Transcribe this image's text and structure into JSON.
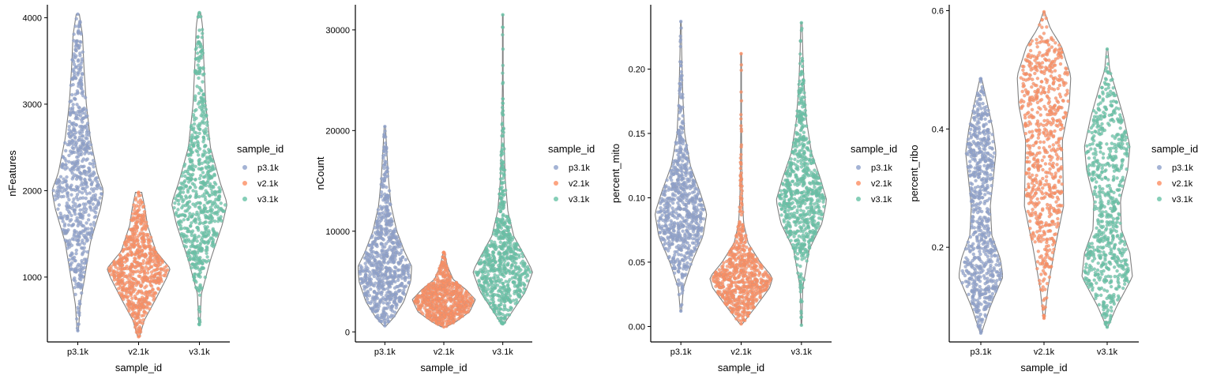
{
  "chart_data": [
    {
      "type": "violin",
      "xlabel": "sample_id",
      "ylabel": "nFeatures",
      "categories": [
        "p3.1k",
        "v2.1k",
        "v3.1k"
      ],
      "ylim": [
        250,
        4150
      ],
      "yticks": [
        1000,
        2000,
        3000,
        4000
      ],
      "yticklabels": [
        "1000",
        "2000",
        "3000",
        "4000"
      ],
      "legend": {
        "title": "sample_id",
        "placement": "right",
        "entries": [
          "p3.1k",
          "v2.1k",
          "v3.1k"
        ]
      },
      "series": [
        {
          "name": "p3.1k",
          "color": "#8da0cb",
          "min": 380,
          "max": 4040,
          "median": 2050,
          "profile": [
            [
              380,
              0.02
            ],
            [
              700,
              0.08
            ],
            [
              1000,
              0.22
            ],
            [
              1400,
              0.4
            ],
            [
              1800,
              0.72
            ],
            [
              2000,
              0.82
            ],
            [
              2200,
              0.62
            ],
            [
              2600,
              0.4
            ],
            [
              3000,
              0.27
            ],
            [
              3400,
              0.2
            ],
            [
              3800,
              0.15
            ],
            [
              4040,
              0.05
            ]
          ]
        },
        {
          "name": "v2.1k",
          "color": "#fc8d62",
          "min": 310,
          "max": 1980,
          "median": 1050,
          "profile": [
            [
              310,
              0.03
            ],
            [
              500,
              0.18
            ],
            [
              750,
              0.55
            ],
            [
              1000,
              0.9
            ],
            [
              1100,
              1.0
            ],
            [
              1300,
              0.55
            ],
            [
              1600,
              0.28
            ],
            [
              1800,
              0.2
            ],
            [
              1980,
              0.1
            ]
          ]
        },
        {
          "name": "v3.1k",
          "color": "#66c2a5",
          "min": 450,
          "max": 4060,
          "median": 1850,
          "profile": [
            [
              450,
              0.02
            ],
            [
              800,
              0.06
            ],
            [
              1200,
              0.35
            ],
            [
              1600,
              0.72
            ],
            [
              1850,
              0.88
            ],
            [
              2100,
              0.65
            ],
            [
              2500,
              0.35
            ],
            [
              3000,
              0.2
            ],
            [
              3500,
              0.14
            ],
            [
              3900,
              0.1
            ],
            [
              4060,
              0.04
            ]
          ]
        }
      ]
    },
    {
      "type": "violin",
      "xlabel": "sample_id",
      "ylabel": "nCount",
      "categories": [
        "p3.1k",
        "v2.1k",
        "v3.1k"
      ],
      "ylim": [
        -1000,
        32500
      ],
      "yticks": [
        0,
        10000,
        20000,
        30000
      ],
      "yticklabels": [
        "0",
        "10000",
        "20000",
        "30000"
      ],
      "legend": {
        "title": "sample_id",
        "placement": "right",
        "entries": [
          "p3.1k",
          "v2.1k",
          "v3.1k"
        ]
      },
      "series": [
        {
          "name": "p3.1k",
          "color": "#8da0cb",
          "min": 600,
          "max": 20400,
          "median": 6500,
          "profile": [
            [
              600,
              0.04
            ],
            [
              1500,
              0.3
            ],
            [
              3000,
              0.6
            ],
            [
              5000,
              0.82
            ],
            [
              6500,
              0.85
            ],
            [
              8000,
              0.62
            ],
            [
              10000,
              0.38
            ],
            [
              12500,
              0.2
            ],
            [
              15000,
              0.12
            ],
            [
              17500,
              0.07
            ],
            [
              20400,
              0.02
            ]
          ]
        },
        {
          "name": "v2.1k",
          "color": "#fc8d62",
          "min": 500,
          "max": 7900,
          "median": 3300,
          "profile": [
            [
              500,
              0.08
            ],
            [
              1000,
              0.38
            ],
            [
              2000,
              0.82
            ],
            [
              3200,
              1.0
            ],
            [
              4200,
              0.7
            ],
            [
              5200,
              0.3
            ],
            [
              6500,
              0.12
            ],
            [
              7900,
              0.02
            ]
          ]
        },
        {
          "name": "v3.1k",
          "color": "#66c2a5",
          "min": 800,
          "max": 31500,
          "median": 6300,
          "profile": [
            [
              800,
              0.04
            ],
            [
              2000,
              0.3
            ],
            [
              4000,
              0.72
            ],
            [
              6000,
              0.95
            ],
            [
              7500,
              0.7
            ],
            [
              9500,
              0.35
            ],
            [
              12000,
              0.16
            ],
            [
              15000,
              0.08
            ],
            [
              20000,
              0.03
            ],
            [
              25000,
              0.01
            ],
            [
              31500,
              0.01
            ]
          ]
        }
      ]
    },
    {
      "type": "violin",
      "xlabel": "sample_id",
      "ylabel": "percent_mito",
      "categories": [
        "p3.1k",
        "v2.1k",
        "v3.1k"
      ],
      "ylim": [
        -0.012,
        0.25
      ],
      "yticks": [
        0.0,
        0.05,
        0.1,
        0.15,
        0.2
      ],
      "yticklabels": [
        "0.00",
        "0.05",
        "0.10",
        "0.15",
        "0.20"
      ],
      "legend": {
        "title": "sample_id",
        "placement": "right",
        "entries": [
          "p3.1k",
          "v2.1k",
          "v3.1k"
        ]
      },
      "series": [
        {
          "name": "p3.1k",
          "color": "#8da0cb",
          "min": 0.012,
          "max": 0.237,
          "median": 0.088,
          "profile": [
            [
              0.012,
              0.02
            ],
            [
              0.03,
              0.08
            ],
            [
              0.05,
              0.35
            ],
            [
              0.07,
              0.7
            ],
            [
              0.088,
              0.82
            ],
            [
              0.105,
              0.6
            ],
            [
              0.125,
              0.3
            ],
            [
              0.15,
              0.12
            ],
            [
              0.18,
              0.06
            ],
            [
              0.21,
              0.03
            ],
            [
              0.237,
              0.01
            ]
          ]
        },
        {
          "name": "v2.1k",
          "color": "#fc8d62",
          "min": 0.002,
          "max": 0.212,
          "median": 0.035,
          "profile": [
            [
              0.002,
              0.04
            ],
            [
              0.015,
              0.45
            ],
            [
              0.03,
              0.9
            ],
            [
              0.038,
              1.0
            ],
            [
              0.05,
              0.6
            ],
            [
              0.065,
              0.22
            ],
            [
              0.08,
              0.08
            ],
            [
              0.1,
              0.04
            ],
            [
              0.13,
              0.02
            ],
            [
              0.16,
              0.01
            ],
            [
              0.212,
              0.01
            ]
          ]
        },
        {
          "name": "v3.1k",
          "color": "#66c2a5",
          "min": 0.001,
          "max": 0.236,
          "median": 0.098,
          "profile": [
            [
              0.001,
              0.01
            ],
            [
              0.03,
              0.04
            ],
            [
              0.06,
              0.25
            ],
            [
              0.08,
              0.65
            ],
            [
              0.098,
              0.8
            ],
            [
              0.115,
              0.6
            ],
            [
              0.135,
              0.32
            ],
            [
              0.16,
              0.16
            ],
            [
              0.19,
              0.08
            ],
            [
              0.215,
              0.04
            ],
            [
              0.236,
              0.02
            ]
          ]
        }
      ]
    },
    {
      "type": "violin",
      "xlabel": "sample_id",
      "ylabel": "percent_ribo",
      "categories": [
        "p3.1k",
        "v2.1k",
        "v3.1k"
      ],
      "ylim": [
        0.04,
        0.61
      ],
      "yticks": [
        0.2,
        0.4,
        0.6
      ],
      "yticklabels": [
        "0.2",
        "0.4",
        "0.6"
      ],
      "legend": {
        "title": "sample_id",
        "placement": "right",
        "entries": [
          "p3.1k",
          "v2.1k",
          "v3.1k"
        ]
      },
      "series": [
        {
          "name": "p3.1k",
          "color": "#8da0cb",
          "min": 0.055,
          "max": 0.485,
          "median": 0.2,
          "profile": [
            [
              0.055,
              0.02
            ],
            [
              0.1,
              0.3
            ],
            [
              0.15,
              0.7
            ],
            [
              0.18,
              0.62
            ],
            [
              0.22,
              0.35
            ],
            [
              0.27,
              0.3
            ],
            [
              0.32,
              0.4
            ],
            [
              0.36,
              0.48
            ],
            [
              0.4,
              0.38
            ],
            [
              0.44,
              0.22
            ],
            [
              0.485,
              0.03
            ]
          ]
        },
        {
          "name": "v2.1k",
          "color": "#fc8d62",
          "min": 0.08,
          "max": 0.598,
          "median": 0.37,
          "profile": [
            [
              0.08,
              0.02
            ],
            [
              0.13,
              0.12
            ],
            [
              0.2,
              0.35
            ],
            [
              0.27,
              0.62
            ],
            [
              0.33,
              0.6
            ],
            [
              0.38,
              0.58
            ],
            [
              0.44,
              0.8
            ],
            [
              0.49,
              0.85
            ],
            [
              0.54,
              0.55
            ],
            [
              0.57,
              0.2
            ],
            [
              0.598,
              0.02
            ]
          ]
        },
        {
          "name": "v3.1k",
          "color": "#66c2a5",
          "min": 0.065,
          "max": 0.535,
          "median": 0.28,
          "profile": [
            [
              0.065,
              0.02
            ],
            [
              0.1,
              0.3
            ],
            [
              0.15,
              0.8
            ],
            [
              0.19,
              0.72
            ],
            [
              0.23,
              0.45
            ],
            [
              0.28,
              0.42
            ],
            [
              0.33,
              0.65
            ],
            [
              0.37,
              0.72
            ],
            [
              0.42,
              0.52
            ],
            [
              0.47,
              0.25
            ],
            [
              0.5,
              0.08
            ],
            [
              0.535,
              0.02
            ]
          ]
        }
      ]
    }
  ]
}
